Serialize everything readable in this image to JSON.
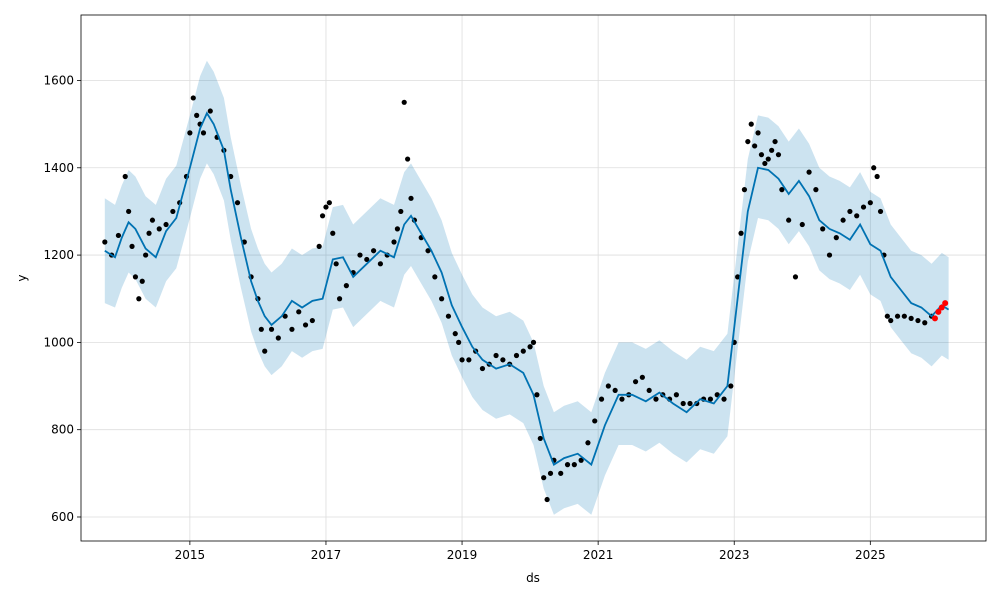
{
  "chart_data": {
    "type": "line",
    "title": "",
    "xlabel": "ds",
    "ylabel": "y",
    "xlim": [
      2013.4,
      2026.7
    ],
    "ylim": [
      545,
      1750
    ],
    "grid": true,
    "legend": "none",
    "x_ticks": [
      2015,
      2017,
      2019,
      2021,
      2023,
      2025
    ],
    "y_ticks": [
      600,
      800,
      1000,
      1200,
      1400,
      1600
    ],
    "x_tick_labels": [
      "2015",
      "2017",
      "2019",
      "2021",
      "2023",
      "2025"
    ],
    "y_tick_labels": [
      "600",
      "800",
      "1000",
      "1200",
      "1400",
      "1600"
    ],
    "colors": {
      "forecast_line": "#0072b2",
      "interval_band": "#0072b2",
      "observed_points": "#000000",
      "recent_points": "#ff0000",
      "grid": "#dddddd",
      "frame": "#000000"
    },
    "forecast": {
      "x": [
        2013.75,
        2013.9,
        2014.0,
        2014.1,
        2014.2,
        2014.35,
        2014.5,
        2014.65,
        2014.8,
        2015.0,
        2015.15,
        2015.25,
        2015.35,
        2015.5,
        2015.6,
        2015.75,
        2015.9,
        2016.0,
        2016.1,
        2016.2,
        2016.35,
        2016.5,
        2016.65,
        2016.8,
        2016.95,
        2017.1,
        2017.25,
        2017.4,
        2017.6,
        2017.8,
        2018.0,
        2018.15,
        2018.25,
        2018.4,
        2018.55,
        2018.7,
        2018.85,
        2019.0,
        2019.15,
        2019.3,
        2019.5,
        2019.7,
        2019.9,
        2020.05,
        2020.2,
        2020.35,
        2020.5,
        2020.7,
        2020.9,
        2021.1,
        2021.3,
        2021.5,
        2021.7,
        2021.9,
        2022.1,
        2022.3,
        2022.5,
        2022.7,
        2022.9,
        2023.05,
        2023.2,
        2023.35,
        2023.5,
        2023.65,
        2023.8,
        2023.95,
        2024.1,
        2024.25,
        2024.4,
        2024.55,
        2024.7,
        2024.85,
        2025.0,
        2025.15,
        2025.3,
        2025.45,
        2025.6,
        2025.75,
        2025.9,
        2026.05,
        2026.15
      ],
      "yhat": [
        1210,
        1195,
        1240,
        1275,
        1260,
        1215,
        1195,
        1255,
        1285,
        1400,
        1490,
        1525,
        1500,
        1440,
        1350,
        1240,
        1140,
        1095,
        1060,
        1040,
        1060,
        1095,
        1080,
        1095,
        1100,
        1190,
        1195,
        1150,
        1180,
        1210,
        1195,
        1270,
        1290,
        1250,
        1210,
        1160,
        1085,
        1035,
        990,
        960,
        940,
        950,
        930,
        880,
        780,
        720,
        735,
        745,
        720,
        810,
        880,
        880,
        865,
        885,
        860,
        840,
        870,
        860,
        900,
        1100,
        1300,
        1400,
        1395,
        1375,
        1340,
        1370,
        1335,
        1280,
        1260,
        1250,
        1235,
        1270,
        1225,
        1210,
        1150,
        1120,
        1090,
        1080,
        1060,
        1085,
        1075
      ],
      "lower": [
        1090,
        1080,
        1125,
        1160,
        1145,
        1100,
        1080,
        1140,
        1170,
        1285,
        1375,
        1410,
        1385,
        1325,
        1235,
        1125,
        1025,
        980,
        945,
        925,
        945,
        980,
        965,
        980,
        985,
        1075,
        1080,
        1035,
        1065,
        1095,
        1080,
        1155,
        1175,
        1135,
        1095,
        1045,
        970,
        920,
        875,
        845,
        825,
        835,
        815,
        765,
        665,
        605,
        620,
        630,
        605,
        695,
        765,
        765,
        750,
        770,
        745,
        725,
        755,
        745,
        785,
        985,
        1185,
        1285,
        1280,
        1260,
        1225,
        1255,
        1220,
        1165,
        1145,
        1135,
        1120,
        1155,
        1110,
        1095,
        1035,
        1005,
        975,
        965,
        945,
        970,
        960
      ],
      "upper": [
        1330,
        1315,
        1360,
        1395,
        1380,
        1335,
        1315,
        1375,
        1405,
        1520,
        1610,
        1645,
        1620,
        1560,
        1470,
        1360,
        1260,
        1215,
        1180,
        1160,
        1180,
        1215,
        1200,
        1215,
        1220,
        1310,
        1315,
        1270,
        1300,
        1330,
        1315,
        1390,
        1410,
        1370,
        1330,
        1280,
        1205,
        1155,
        1110,
        1080,
        1060,
        1070,
        1050,
        1000,
        900,
        840,
        855,
        865,
        840,
        930,
        1000,
        1000,
        985,
        1005,
        980,
        960,
        990,
        980,
        1020,
        1220,
        1420,
        1520,
        1515,
        1495,
        1460,
        1490,
        1455,
        1400,
        1380,
        1370,
        1355,
        1390,
        1345,
        1330,
        1270,
        1240,
        1210,
        1200,
        1180,
        1205,
        1195
      ]
    },
    "observed": {
      "x": [
        2013.75,
        2013.85,
        2013.95,
        2014.05,
        2014.1,
        2014.15,
        2014.2,
        2014.25,
        2014.3,
        2014.35,
        2014.4,
        2014.45,
        2014.55,
        2014.65,
        2014.75,
        2014.85,
        2014.95,
        2015.0,
        2015.05,
        2015.1,
        2015.15,
        2015.2,
        2015.3,
        2015.4,
        2015.5,
        2015.6,
        2015.7,
        2015.8,
        2015.9,
        2016.0,
        2016.05,
        2016.1,
        2016.2,
        2016.3,
        2016.4,
        2016.5,
        2016.6,
        2016.7,
        2016.8,
        2016.9,
        2016.95,
        2017.0,
        2017.05,
        2017.1,
        2017.15,
        2017.2,
        2017.3,
        2017.4,
        2017.5,
        2017.6,
        2017.7,
        2017.8,
        2017.9,
        2018.0,
        2018.05,
        2018.1,
        2018.15,
        2018.2,
        2018.25,
        2018.3,
        2018.4,
        2018.5,
        2018.6,
        2018.7,
        2018.8,
        2018.9,
        2018.95,
        2019.0,
        2019.1,
        2019.2,
        2019.3,
        2019.4,
        2019.5,
        2019.6,
        2019.7,
        2019.8,
        2019.9,
        2020.0,
        2020.05,
        2020.1,
        2020.15,
        2020.2,
        2020.25,
        2020.3,
        2020.35,
        2020.45,
        2020.55,
        2020.65,
        2020.75,
        2020.85,
        2020.95,
        2021.05,
        2021.15,
        2021.25,
        2021.35,
        2021.45,
        2021.55,
        2021.65,
        2021.75,
        2021.85,
        2021.95,
        2022.05,
        2022.15,
        2022.25,
        2022.35,
        2022.45,
        2022.55,
        2022.65,
        2022.75,
        2022.85,
        2022.95,
        2023.0,
        2023.05,
        2023.1,
        2023.15,
        2023.2,
        2023.25,
        2023.3,
        2023.35,
        2023.4,
        2023.45,
        2023.5,
        2023.55,
        2023.6,
        2023.65,
        2023.7,
        2023.8,
        2023.9,
        2024.0,
        2024.1,
        2024.2,
        2024.3,
        2024.4,
        2024.5,
        2024.6,
        2024.7,
        2024.8,
        2024.9,
        2025.0,
        2025.05,
        2025.1,
        2025.15,
        2025.2,
        2025.25,
        2025.3,
        2025.4,
        2025.5,
        2025.6,
        2025.7,
        2025.8,
        2025.9
      ],
      "y": [
        1230,
        1200,
        1245,
        1380,
        1300,
        1220,
        1150,
        1100,
        1140,
        1200,
        1250,
        1280,
        1260,
        1270,
        1300,
        1320,
        1380,
        1480,
        1560,
        1520,
        1500,
        1480,
        1530,
        1470,
        1440,
        1380,
        1320,
        1230,
        1150,
        1100,
        1030,
        980,
        1030,
        1010,
        1060,
        1030,
        1070,
        1040,
        1050,
        1220,
        1290,
        1310,
        1320,
        1250,
        1180,
        1100,
        1130,
        1160,
        1200,
        1190,
        1210,
        1180,
        1200,
        1230,
        1260,
        1300,
        1550,
        1420,
        1330,
        1280,
        1240,
        1210,
        1150,
        1100,
        1060,
        1020,
        1000,
        960,
        960,
        980,
        940,
        950,
        970,
        960,
        950,
        970,
        980,
        990,
        1000,
        880,
        780,
        690,
        640,
        700,
        730,
        700,
        720,
        720,
        730,
        770,
        820,
        870,
        900,
        890,
        870,
        880,
        910,
        920,
        890,
        870,
        880,
        870,
        880,
        860,
        860,
        860,
        870,
        870,
        880,
        870,
        900,
        1000,
        1150,
        1250,
        1350,
        1460,
        1500,
        1450,
        1480,
        1430,
        1410,
        1420,
        1440,
        1460,
        1430,
        1350,
        1280,
        1150,
        1270,
        1390,
        1350,
        1260,
        1200,
        1240,
        1280,
        1300,
        1290,
        1310,
        1320,
        1400,
        1380,
        1300,
        1200,
        1060,
        1050,
        1060,
        1060,
        1055,
        1050,
        1045,
        1060
      ],
      "recent_x": [
        2025.95,
        2026.0,
        2026.05,
        2026.1
      ],
      "recent_y": [
        1055,
        1070,
        1080,
        1090
      ]
    }
  }
}
